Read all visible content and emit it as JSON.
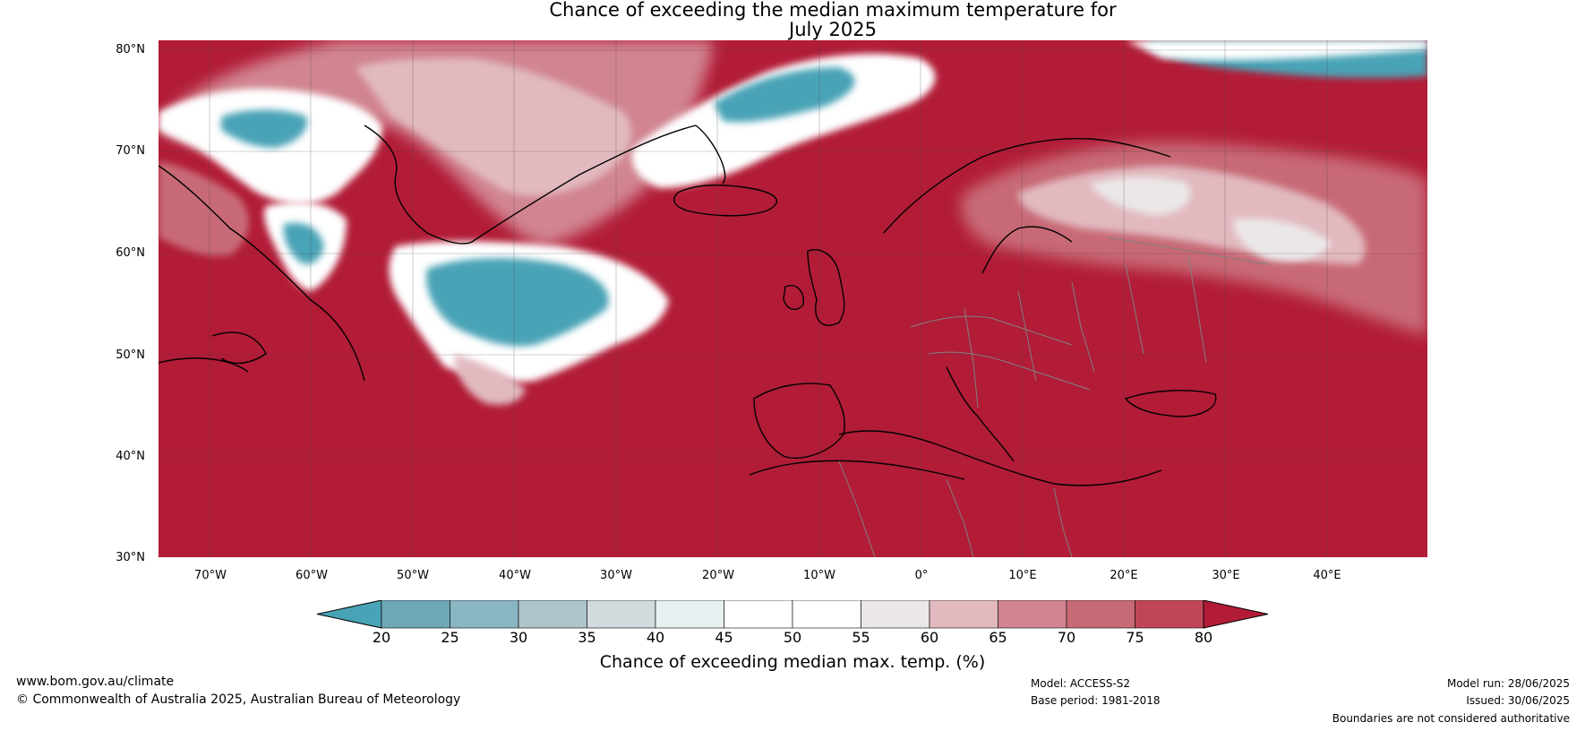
{
  "title": {
    "line1": "Chance of exceeding the median maximum temperature for",
    "line2": "July 2025"
  },
  "lat_labels": [
    "80°N",
    "70°N",
    "60°N",
    "50°N",
    "40°N",
    "30°N"
  ],
  "lon_labels": [
    "70°W",
    "60°W",
    "50°W",
    "40°W",
    "30°W",
    "20°W",
    "10°W",
    "0°",
    "10°E",
    "20°E",
    "30°E",
    "40°E"
  ],
  "map": {
    "base_color": "#b21c37",
    "land_outline_color": "#000000",
    "border_color": "#808080"
  },
  "colorbar": {
    "ticks": [
      "20",
      "25",
      "30",
      "35",
      "40",
      "45",
      "50",
      "55",
      "60",
      "65",
      "70",
      "75",
      "80"
    ],
    "colors": [
      "#49a3b6",
      "#6ea8b7",
      "#8ab6c3",
      "#adc4cb",
      "#d2dadd",
      "#e8f0f2",
      "#ffffff",
      "#ffffff",
      "#ebe7e8",
      "#e1b9bf",
      "#d18591",
      "#c86a76",
      "#c04657",
      "#b21c37"
    ],
    "label": "Chance of exceeding median max. temp. (%)"
  },
  "footer": {
    "website": "www.bom.gov.au/climate",
    "copyright": "© Commonwealth of Australia 2025, Australian Bureau of Meteorology",
    "model": "Model: ACCESS-S2",
    "base_period": "Base period: 1981-2018",
    "model_run": "Model run: 28/06/2025",
    "issued": "Issued: 30/06/2025",
    "disclaimer": "Boundaries are not considered authoritative"
  }
}
